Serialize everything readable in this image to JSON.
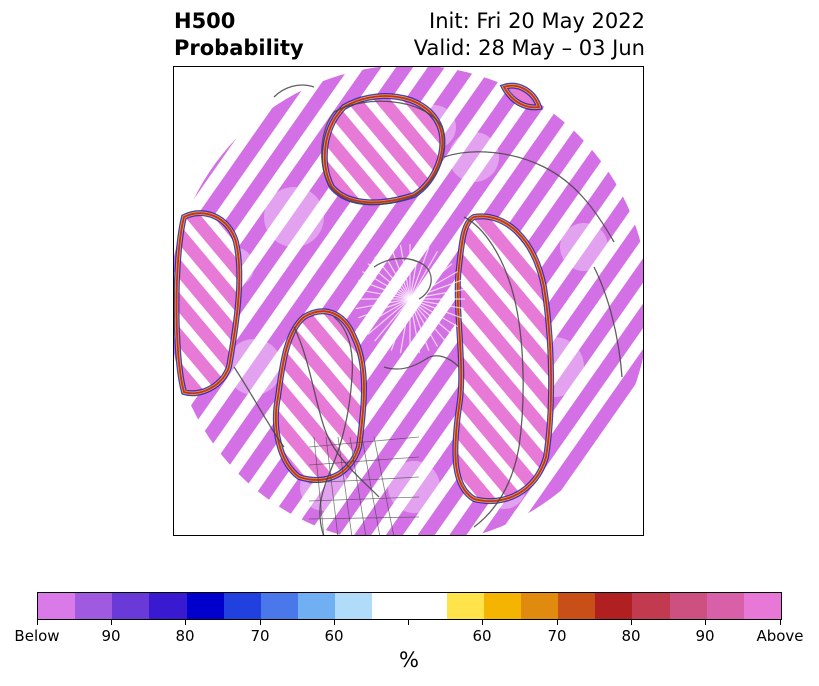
{
  "title": {
    "left_line1": "H500",
    "left_line2": "Probability",
    "right_line1": "Init: Fri 20 May 2022",
    "right_line2": "Valid: 28 May – 03 Jun"
  },
  "colorbar": {
    "label": "%",
    "colors": [
      "#d97ae8",
      "#a05ae0",
      "#6a3ad8",
      "#3a1ad0",
      "#0000cc",
      "#2040e0",
      "#4a78ea",
      "#70b0f2",
      "#b0dcfa",
      "#ffffff",
      "#ffe34a",
      "#f4b400",
      "#e08a10",
      "#c85018",
      "#b02020",
      "#c23a50",
      "#cc5080",
      "#d860a8",
      "#e878d8"
    ],
    "tick_labels": [
      "Below",
      "90",
      "80",
      "70",
      "60",
      "60",
      "70",
      "80",
      "90",
      "Above"
    ]
  },
  "map": {
    "projection": "north-polar-stereographic",
    "colors": {
      "below": "#d470e6",
      "above": "#e67ad6",
      "coast": "#444444",
      "ring_red": "#c03030",
      "ring_orange": "#f0a020",
      "ring_blue": "#2020c0"
    }
  }
}
